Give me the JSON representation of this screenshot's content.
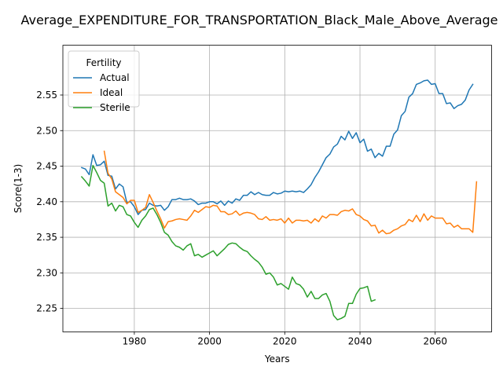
{
  "chart_data": {
    "type": "line",
    "title": "Average_EXPENDITURE_FOR_TRANSPORTATION_Black_Male_Above_Average",
    "xlabel": "Years",
    "ylabel": "Score(1-3)",
    "xlim": [
      1961,
      2075
    ],
    "ylim": [
      2.217,
      2.62
    ],
    "x_ticks": [
      1980,
      2000,
      2020,
      2040,
      2060
    ],
    "x_tick_labels": [
      "1980",
      "2000",
      "2020",
      "2040",
      "2060"
    ],
    "y_ticks": [
      2.25,
      2.3,
      2.35,
      2.4,
      2.45,
      2.5,
      2.55
    ],
    "y_tick_labels": [
      "2.25",
      "2.30",
      "2.35",
      "2.40",
      "2.45",
      "2.50",
      "2.55"
    ],
    "grid": true,
    "legend": {
      "title": "Fertility",
      "placement": "top-left"
    },
    "series": [
      {
        "name": "Actual",
        "color": "#1f77b4",
        "points": [
          [
            1966,
            2.448
          ],
          [
            1967,
            2.446
          ],
          [
            1968,
            2.438
          ],
          [
            1969,
            2.466
          ],
          [
            1970,
            2.451
          ],
          [
            1971,
            2.452
          ],
          [
            1972,
            2.457
          ],
          [
            1973,
            2.437
          ],
          [
            1974,
            2.436
          ],
          [
            1975,
            2.418
          ],
          [
            1976,
            2.425
          ],
          [
            1977,
            2.421
          ],
          [
            1978,
            2.399
          ],
          [
            1979,
            2.4
          ],
          [
            1980,
            2.393
          ],
          [
            1981,
            2.382
          ],
          [
            1982,
            2.388
          ],
          [
            1983,
            2.389
          ],
          [
            1984,
            2.398
          ],
          [
            1985,
            2.395
          ],
          [
            1986,
            2.394
          ],
          [
            1987,
            2.395
          ],
          [
            1988,
            2.388
          ],
          [
            1989,
            2.393
          ],
          [
            1990,
            2.403
          ],
          [
            1991,
            2.403
          ],
          [
            1992,
            2.405
          ],
          [
            1993,
            2.403
          ],
          [
            1994,
            2.403
          ],
          [
            1995,
            2.404
          ],
          [
            1996,
            2.401
          ],
          [
            1997,
            2.396
          ],
          [
            1998,
            2.398
          ],
          [
            1999,
            2.398
          ],
          [
            2000,
            2.4
          ],
          [
            2001,
            2.4
          ],
          [
            2002,
            2.397
          ],
          [
            2003,
            2.401
          ],
          [
            2004,
            2.395
          ],
          [
            2005,
            2.401
          ],
          [
            2006,
            2.398
          ],
          [
            2007,
            2.404
          ],
          [
            2008,
            2.402
          ],
          [
            2009,
            2.409
          ],
          [
            2010,
            2.409
          ],
          [
            2011,
            2.414
          ],
          [
            2012,
            2.41
          ],
          [
            2013,
            2.413
          ],
          [
            2014,
            2.41
          ],
          [
            2015,
            2.409
          ],
          [
            2016,
            2.409
          ],
          [
            2017,
            2.413
          ],
          [
            2018,
            2.411
          ],
          [
            2019,
            2.412
          ],
          [
            2020,
            2.415
          ],
          [
            2021,
            2.414
          ],
          [
            2022,
            2.415
          ],
          [
            2023,
            2.414
          ],
          [
            2024,
            2.415
          ],
          [
            2025,
            2.413
          ],
          [
            2026,
            2.418
          ],
          [
            2027,
            2.424
          ],
          [
            2028,
            2.434
          ],
          [
            2029,
            2.442
          ],
          [
            2030,
            2.452
          ],
          [
            2031,
            2.462
          ],
          [
            2032,
            2.467
          ],
          [
            2033,
            2.477
          ],
          [
            2034,
            2.481
          ],
          [
            2035,
            2.492
          ],
          [
            2036,
            2.487
          ],
          [
            2037,
            2.499
          ],
          [
            2038,
            2.489
          ],
          [
            2039,
            2.497
          ],
          [
            2040,
            2.483
          ],
          [
            2041,
            2.488
          ],
          [
            2042,
            2.471
          ],
          [
            2043,
            2.474
          ],
          [
            2044,
            2.462
          ],
          [
            2045,
            2.468
          ],
          [
            2046,
            2.464
          ],
          [
            2047,
            2.478
          ],
          [
            2048,
            2.478
          ],
          [
            2049,
            2.495
          ],
          [
            2050,
            2.501
          ],
          [
            2051,
            2.521
          ],
          [
            2052,
            2.527
          ],
          [
            2053,
            2.547
          ],
          [
            2054,
            2.552
          ],
          [
            2055,
            2.565
          ],
          [
            2056,
            2.567
          ],
          [
            2057,
            2.57
          ],
          [
            2058,
            2.571
          ],
          [
            2059,
            2.565
          ],
          [
            2060,
            2.566
          ],
          [
            2061,
            2.552
          ],
          [
            2062,
            2.552
          ],
          [
            2063,
            2.538
          ],
          [
            2064,
            2.539
          ],
          [
            2065,
            2.531
          ],
          [
            2066,
            2.535
          ],
          [
            2067,
            2.537
          ],
          [
            2068,
            2.543
          ],
          [
            2069,
            2.557
          ],
          [
            2070,
            2.565
          ]
        ]
      },
      {
        "name": "Ideal",
        "color": "#ff7f0e",
        "points": [
          [
            1972,
            2.471
          ],
          [
            1973,
            2.44
          ],
          [
            1974,
            2.432
          ],
          [
            1975,
            2.414
          ],
          [
            1976,
            2.41
          ],
          [
            1977,
            2.406
          ],
          [
            1978,
            2.397
          ],
          [
            1979,
            2.402
          ],
          [
            1980,
            2.402
          ],
          [
            1981,
            2.385
          ],
          [
            1982,
            2.388
          ],
          [
            1983,
            2.392
          ],
          [
            1984,
            2.41
          ],
          [
            1985,
            2.399
          ],
          [
            1986,
            2.387
          ],
          [
            1987,
            2.376
          ],
          [
            1988,
            2.363
          ],
          [
            1989,
            2.372
          ],
          [
            1990,
            2.373
          ],
          [
            1991,
            2.375
          ],
          [
            1992,
            2.376
          ],
          [
            1993,
            2.375
          ],
          [
            1994,
            2.374
          ],
          [
            1995,
            2.38
          ],
          [
            1996,
            2.388
          ],
          [
            1997,
            2.385
          ],
          [
            1998,
            2.389
          ],
          [
            1999,
            2.393
          ],
          [
            2000,
            2.392
          ],
          [
            2001,
            2.395
          ],
          [
            2002,
            2.394
          ],
          [
            2003,
            2.386
          ],
          [
            2004,
            2.386
          ],
          [
            2005,
            2.382
          ],
          [
            2006,
            2.383
          ],
          [
            2007,
            2.387
          ],
          [
            2008,
            2.381
          ],
          [
            2009,
            2.384
          ],
          [
            2010,
            2.385
          ],
          [
            2011,
            2.384
          ],
          [
            2012,
            2.382
          ],
          [
            2013,
            2.376
          ],
          [
            2014,
            2.375
          ],
          [
            2015,
            2.379
          ],
          [
            2016,
            2.374
          ],
          [
            2017,
            2.375
          ],
          [
            2018,
            2.374
          ],
          [
            2019,
            2.376
          ],
          [
            2020,
            2.37
          ],
          [
            2021,
            2.377
          ],
          [
            2022,
            2.37
          ],
          [
            2023,
            2.374
          ],
          [
            2024,
            2.374
          ],
          [
            2025,
            2.373
          ],
          [
            2026,
            2.374
          ],
          [
            2027,
            2.37
          ],
          [
            2028,
            2.376
          ],
          [
            2029,
            2.372
          ],
          [
            2030,
            2.38
          ],
          [
            2031,
            2.377
          ],
          [
            2032,
            2.382
          ],
          [
            2033,
            2.382
          ],
          [
            2034,
            2.381
          ],
          [
            2035,
            2.386
          ],
          [
            2036,
            2.388
          ],
          [
            2037,
            2.387
          ],
          [
            2038,
            2.39
          ],
          [
            2039,
            2.382
          ],
          [
            2040,
            2.38
          ],
          [
            2041,
            2.375
          ],
          [
            2042,
            2.373
          ],
          [
            2043,
            2.366
          ],
          [
            2044,
            2.367
          ],
          [
            2045,
            2.356
          ],
          [
            2046,
            2.36
          ],
          [
            2047,
            2.355
          ],
          [
            2048,
            2.356
          ],
          [
            2049,
            2.36
          ],
          [
            2050,
            2.362
          ],
          [
            2051,
            2.366
          ],
          [
            2052,
            2.368
          ],
          [
            2053,
            2.375
          ],
          [
            2054,
            2.372
          ],
          [
            2055,
            2.381
          ],
          [
            2056,
            2.372
          ],
          [
            2057,
            2.383
          ],
          [
            2058,
            2.374
          ],
          [
            2059,
            2.38
          ],
          [
            2060,
            2.377
          ],
          [
            2061,
            2.377
          ],
          [
            2062,
            2.377
          ],
          [
            2063,
            2.369
          ],
          [
            2064,
            2.37
          ],
          [
            2065,
            2.364
          ],
          [
            2066,
            2.367
          ],
          [
            2067,
            2.362
          ],
          [
            2068,
            2.362
          ],
          [
            2069,
            2.362
          ],
          [
            2070,
            2.357
          ],
          [
            2071,
            2.428
          ]
        ]
      },
      {
        "name": "Sterile",
        "color": "#2ca02c",
        "points": [
          [
            1966,
            2.435
          ],
          [
            1967,
            2.429
          ],
          [
            1968,
            2.422
          ],
          [
            1969,
            2.451
          ],
          [
            1970,
            2.441
          ],
          [
            1971,
            2.43
          ],
          [
            1972,
            2.426
          ],
          [
            1973,
            2.394
          ],
          [
            1974,
            2.398
          ],
          [
            1975,
            2.387
          ],
          [
            1976,
            2.395
          ],
          [
            1977,
            2.393
          ],
          [
            1978,
            2.382
          ],
          [
            1979,
            2.38
          ],
          [
            1980,
            2.371
          ],
          [
            1981,
            2.364
          ],
          [
            1982,
            2.374
          ],
          [
            1983,
            2.38
          ],
          [
            1984,
            2.389
          ],
          [
            1985,
            2.391
          ],
          [
            1986,
            2.382
          ],
          [
            1987,
            2.371
          ],
          [
            1988,
            2.357
          ],
          [
            1989,
            2.353
          ],
          [
            1990,
            2.344
          ],
          [
            1991,
            2.338
          ],
          [
            1992,
            2.336
          ],
          [
            1993,
            2.332
          ],
          [
            1994,
            2.338
          ],
          [
            1995,
            2.341
          ],
          [
            1996,
            2.324
          ],
          [
            1997,
            2.326
          ],
          [
            1998,
            2.322
          ],
          [
            1999,
            2.325
          ],
          [
            2000,
            2.328
          ],
          [
            2001,
            2.331
          ],
          [
            2002,
            2.324
          ],
          [
            2003,
            2.329
          ],
          [
            2004,
            2.334
          ],
          [
            2005,
            2.34
          ],
          [
            2006,
            2.342
          ],
          [
            2007,
            2.341
          ],
          [
            2008,
            2.336
          ],
          [
            2009,
            2.332
          ],
          [
            2010,
            2.33
          ],
          [
            2011,
            2.324
          ],
          [
            2012,
            2.319
          ],
          [
            2013,
            2.315
          ],
          [
            2014,
            2.308
          ],
          [
            2015,
            2.298
          ],
          [
            2016,
            2.3
          ],
          [
            2017,
            2.294
          ],
          [
            2018,
            2.283
          ],
          [
            2019,
            2.285
          ],
          [
            2020,
            2.281
          ],
          [
            2021,
            2.277
          ],
          [
            2022,
            2.294
          ],
          [
            2023,
            2.285
          ],
          [
            2024,
            2.283
          ],
          [
            2025,
            2.277
          ],
          [
            2026,
            2.266
          ],
          [
            2027,
            2.274
          ],
          [
            2028,
            2.264
          ],
          [
            2029,
            2.264
          ],
          [
            2030,
            2.269
          ],
          [
            2031,
            2.271
          ],
          [
            2032,
            2.26
          ],
          [
            2033,
            2.24
          ],
          [
            2034,
            2.234
          ],
          [
            2035,
            2.236
          ],
          [
            2036,
            2.239
          ],
          [
            2037,
            2.257
          ],
          [
            2038,
            2.257
          ],
          [
            2039,
            2.27
          ],
          [
            2040,
            2.278
          ],
          [
            2041,
            2.279
          ],
          [
            2042,
            2.281
          ],
          [
            2043,
            2.26
          ],
          [
            2044,
            2.262
          ]
        ]
      }
    ]
  }
}
